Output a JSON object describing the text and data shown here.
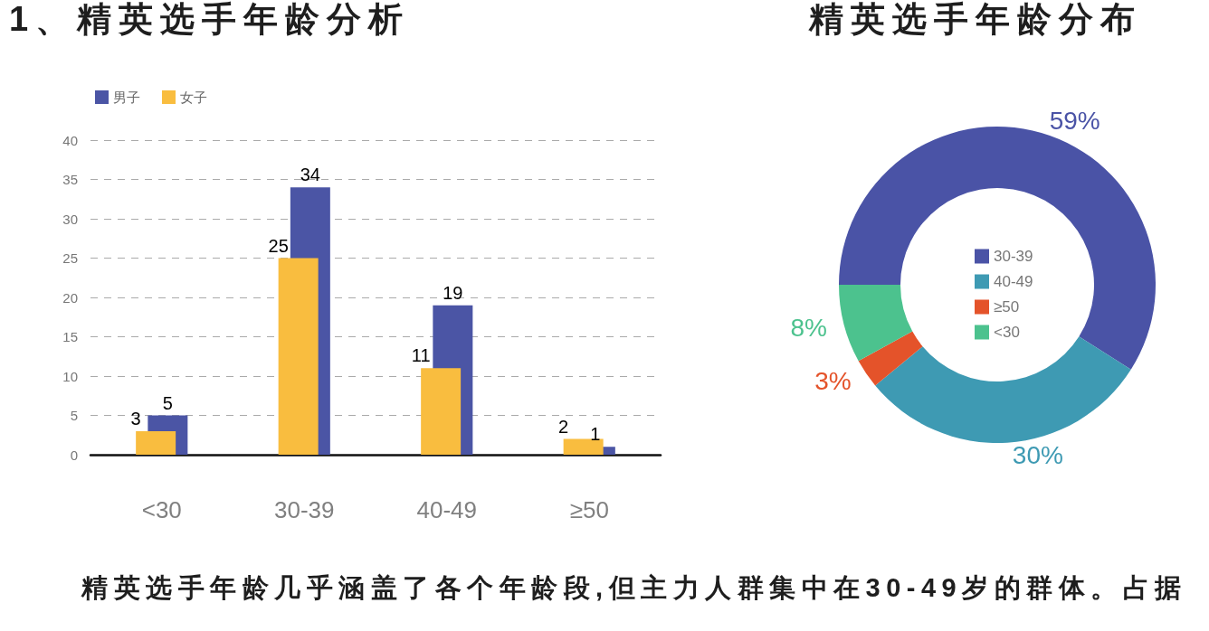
{
  "chart_data": [
    {
      "type": "bar",
      "title": "1、精英选手年龄分析",
      "categories": [
        "<30",
        "30-39",
        "40-49",
        "≥50"
      ],
      "series": [
        {
          "name": "男子",
          "color": "#4b55a5",
          "values": [
            5,
            34,
            19,
            1
          ]
        },
        {
          "name": "女子",
          "color": "#f9bd3f",
          "values": [
            3,
            25,
            11,
            2
          ]
        }
      ],
      "ylim": [
        0,
        40
      ],
      "yticks": [
        0,
        5,
        10,
        15,
        20,
        25,
        30,
        35,
        40
      ],
      "grid": "y",
      "legend": "top left",
      "data_labels": true,
      "annotations": [
        "精英选手年龄几乎涵盖了各个年龄段,但主力人群集中在30-49岁的群体。占据"
      ]
    },
    {
      "type": "donut",
      "title": "精英选手年龄分布",
      "categories": [
        "30-39",
        "40-49",
        "≥50",
        "<30"
      ],
      "values": [
        59,
        30,
        3,
        8
      ],
      "colors": [
        "#4a53a6",
        "#3e9ab3",
        "#e4532a",
        "#4cc28e"
      ],
      "value_labels": [
        "59%",
        "30%",
        "3%",
        "8%"
      ],
      "legend": "center"
    }
  ]
}
